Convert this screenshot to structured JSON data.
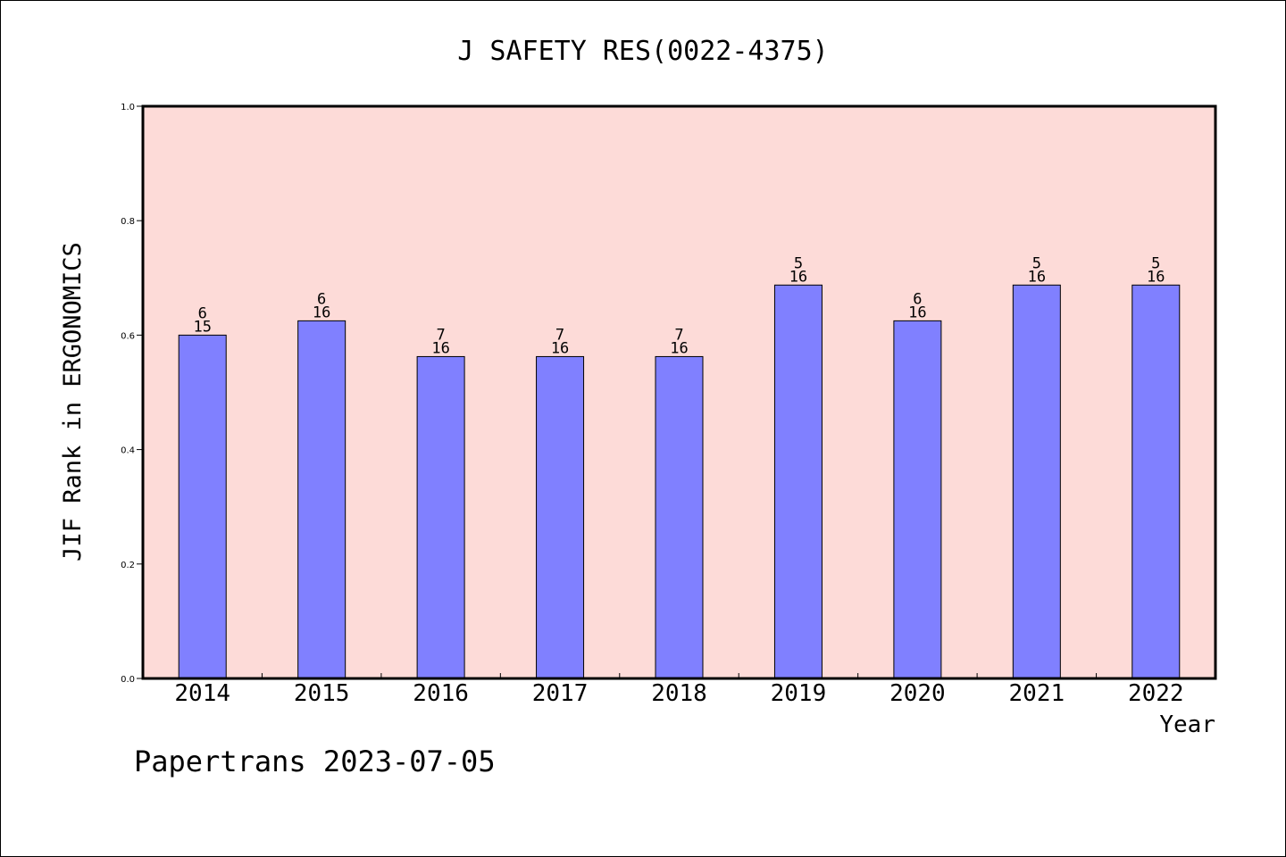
{
  "chart_data": {
    "type": "bar",
    "title": "J SAFETY RES(0022-4375)",
    "xlabel": "Year",
    "ylabel": "JIF Rank in ERGONOMICS",
    "ylim": [
      0.0,
      1.0
    ],
    "yticks": [
      "0.0",
      "0.2",
      "0.4",
      "0.6",
      "0.8",
      "1.0"
    ],
    "categories": [
      "2014",
      "2015",
      "2016",
      "2017",
      "2018",
      "2019",
      "2020",
      "2021",
      "2022"
    ],
    "values": [
      0.6,
      0.625,
      0.5625,
      0.5625,
      0.5625,
      0.6875,
      0.625,
      0.6875,
      0.6875
    ],
    "rank_labels": [
      {
        "rank": "6",
        "total": "15"
      },
      {
        "rank": "6",
        "total": "16"
      },
      {
        "rank": "7",
        "total": "16"
      },
      {
        "rank": "7",
        "total": "16"
      },
      {
        "rank": "7",
        "total": "16"
      },
      {
        "rank": "5",
        "total": "16"
      },
      {
        "rank": "6",
        "total": "16"
      },
      {
        "rank": "5",
        "total": "16"
      },
      {
        "rank": "5",
        "total": "16"
      }
    ],
    "grid": false,
    "colors": {
      "plot_background": "#fddbd8",
      "bar_fill": "#8080ff",
      "bar_stroke": "#000000"
    }
  },
  "footer": {
    "credit": "Papertrans 2023-07-05"
  }
}
